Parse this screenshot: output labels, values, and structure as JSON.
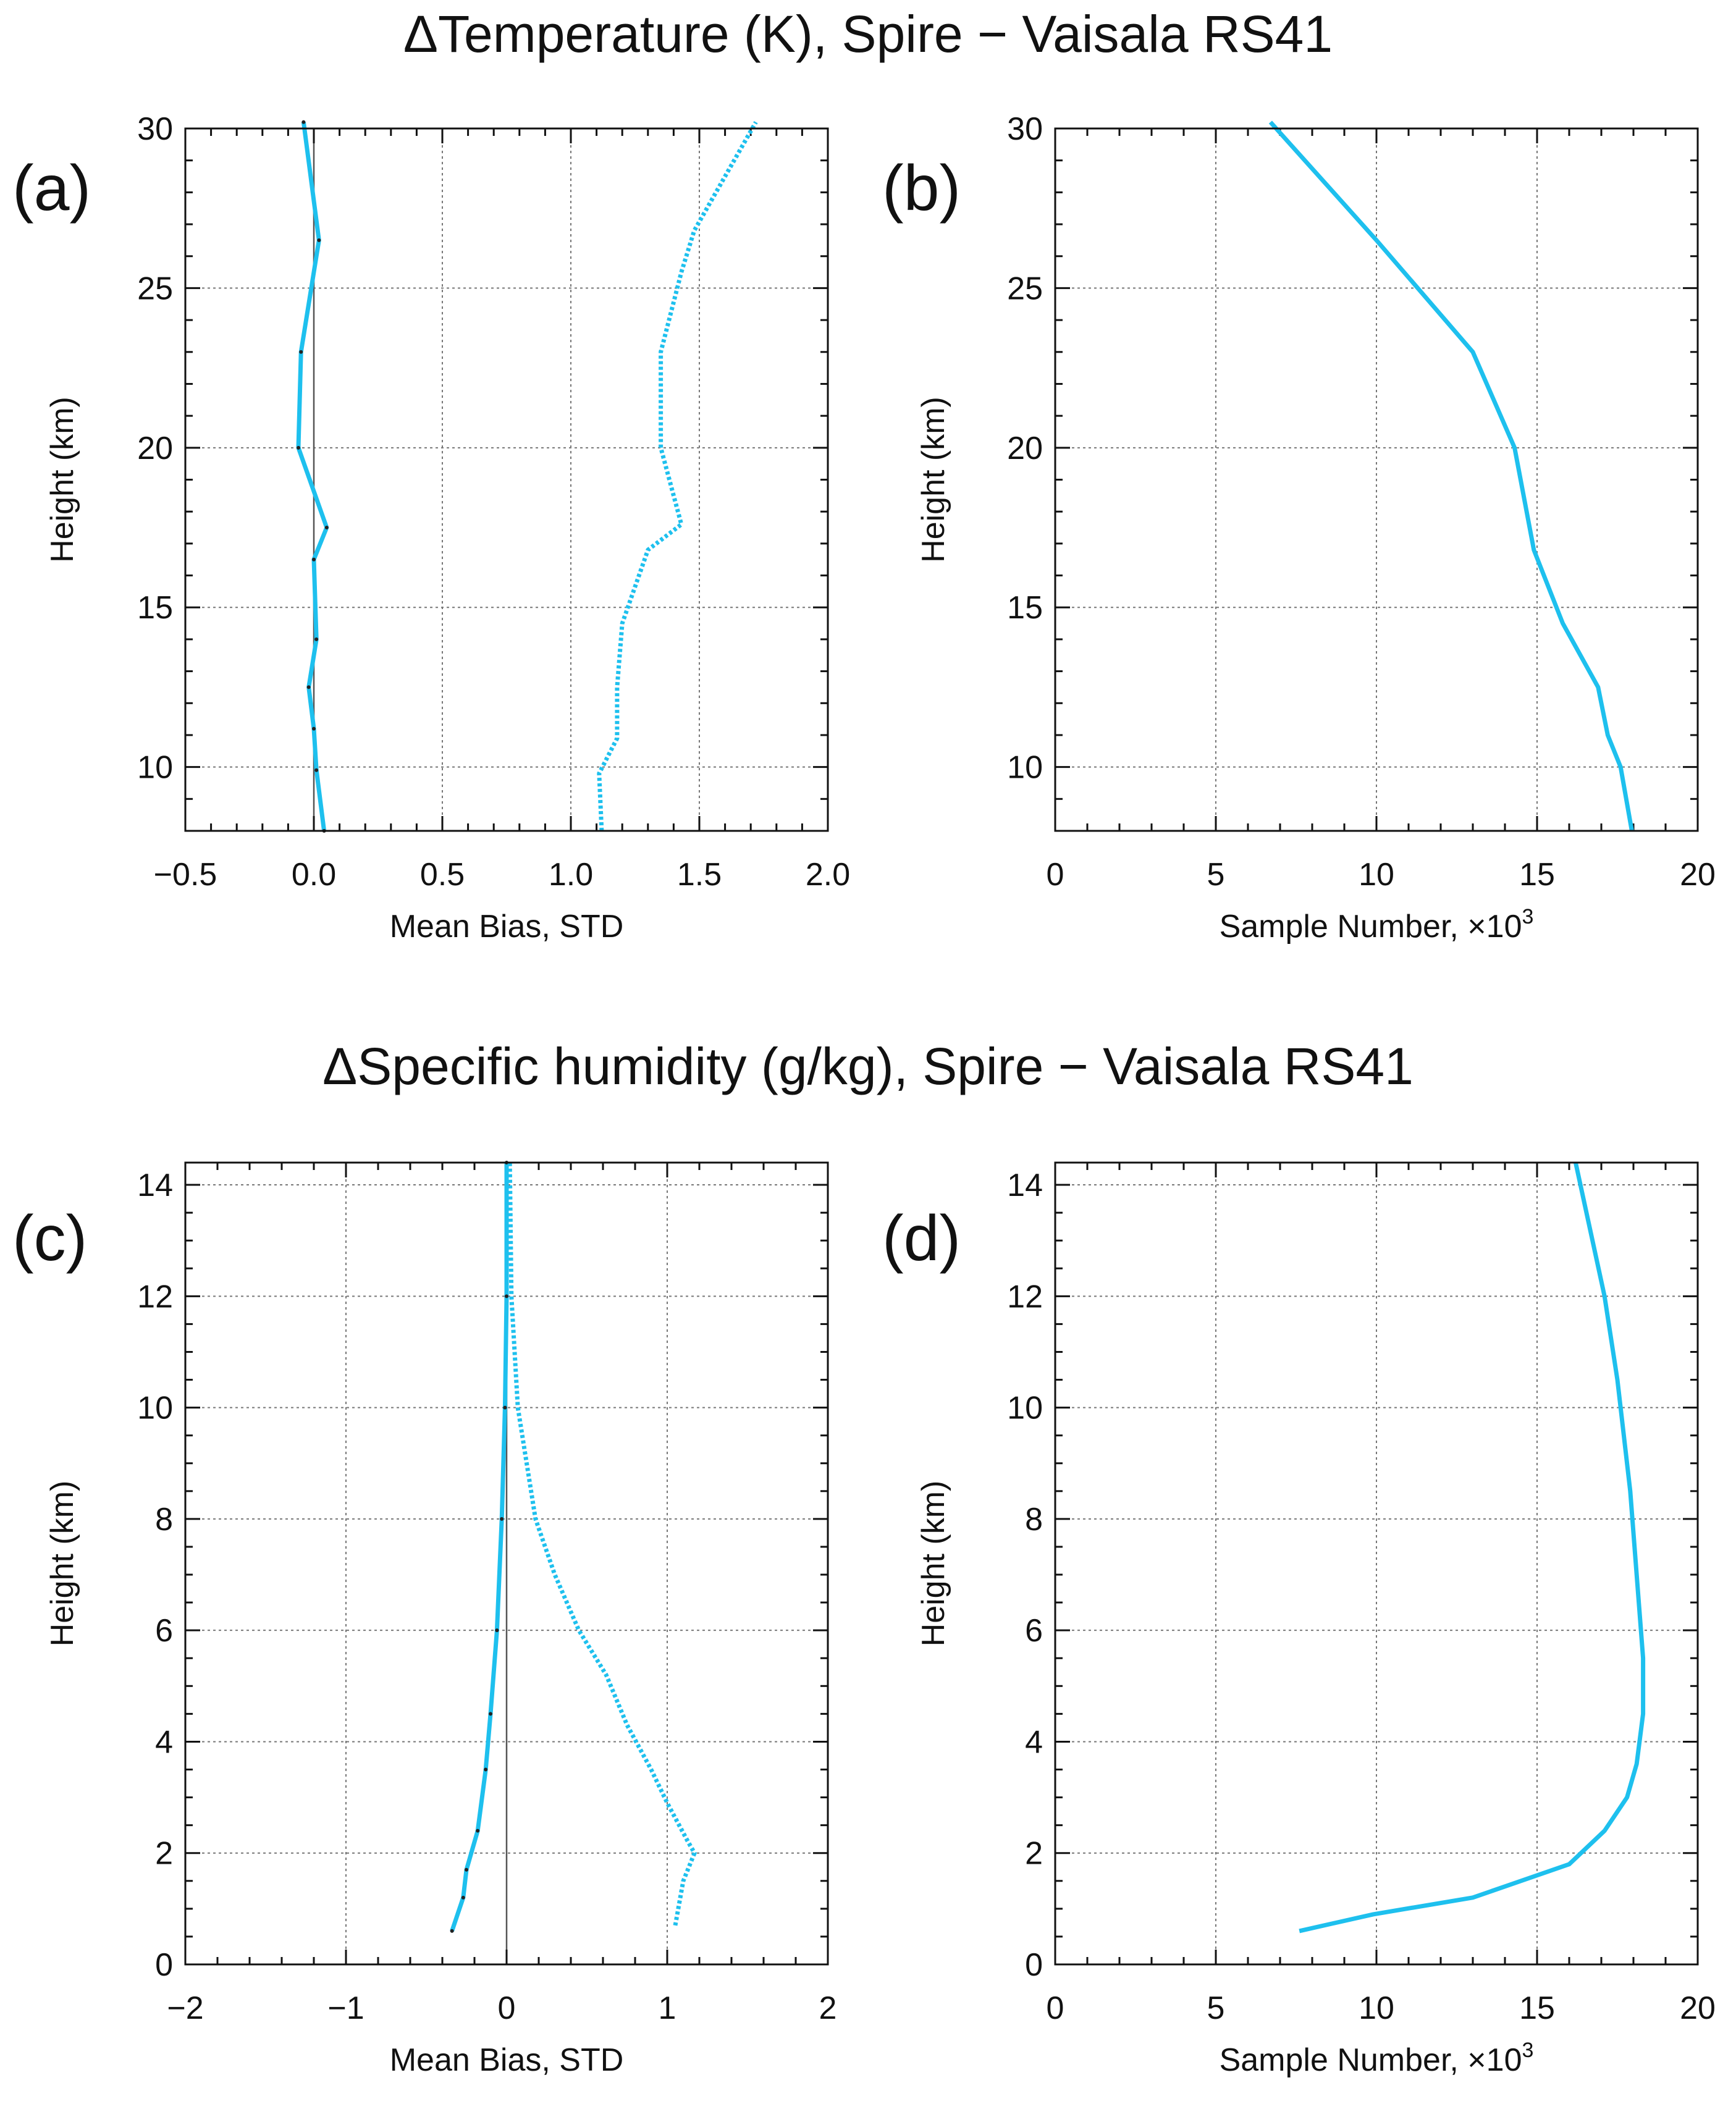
{
  "titles": {
    "top": "ΔTemperature (K), Spire − Vaisala RS41",
    "bottom": "ΔSpecific humidity (g/kg), Spire − Vaisala RS41"
  },
  "colors": {
    "series": "#1ec0ee",
    "zero_line": "#555555",
    "grid": "#777777"
  },
  "chart_data": [
    {
      "id": "a",
      "panel_label": "(a)",
      "type": "line",
      "xlabel": "Mean Bias, STD",
      "ylabel": "Height (km)",
      "xlim": [
        -0.5,
        2.0
      ],
      "ylim": [
        8,
        30
      ],
      "xticks": [
        -0.5,
        0.0,
        0.5,
        1.0,
        1.5,
        2.0
      ],
      "xtick_labels": [
        "−0.5",
        "0.0",
        "0.5",
        "1.0",
        "1.5",
        "2.0"
      ],
      "yticks": [
        10,
        15,
        20,
        25,
        30
      ],
      "ytick_labels": [
        "10",
        "15",
        "20",
        "25",
        "30"
      ],
      "x_minor_step": 0.1,
      "y_minor_step": 1,
      "zero_line": 0,
      "series": [
        {
          "name": "Mean Bias",
          "style": "solid",
          "points": [
            [
              0.04,
              8.0
            ],
            [
              0.01,
              9.9
            ],
            [
              0.0,
              11.2
            ],
            [
              -0.02,
              12.5
            ],
            [
              0.01,
              14.0
            ],
            [
              0.0,
              16.5
            ],
            [
              0.05,
              17.5
            ],
            [
              -0.06,
              20.0
            ],
            [
              -0.05,
              23.0
            ],
            [
              0.02,
              26.5
            ],
            [
              -0.04,
              30.2
            ]
          ]
        },
        {
          "name": "STD",
          "style": "dotted",
          "points": [
            [
              1.12,
              8.0
            ],
            [
              1.11,
              9.8
            ],
            [
              1.18,
              10.9
            ],
            [
              1.18,
              12.5
            ],
            [
              1.2,
              14.5
            ],
            [
              1.3,
              16.8
            ],
            [
              1.43,
              17.6
            ],
            [
              1.35,
              20.0
            ],
            [
              1.35,
              23.0
            ],
            [
              1.43,
              25.5
            ],
            [
              1.48,
              26.8
            ],
            [
              1.72,
              30.2
            ]
          ]
        }
      ]
    },
    {
      "id": "b",
      "panel_label": "(b)",
      "type": "line",
      "xlabel": "Sample Number, ×10",
      "xlabel_sup": "3",
      "ylabel": "Height (km)",
      "xlim": [
        0,
        20
      ],
      "ylim": [
        8,
        30
      ],
      "xticks": [
        0,
        5,
        10,
        15,
        20
      ],
      "xtick_labels": [
        "0",
        "5",
        "10",
        "15",
        "20"
      ],
      "yticks": [
        10,
        15,
        20,
        25,
        30
      ],
      "ytick_labels": [
        "10",
        "15",
        "20",
        "25",
        "30"
      ],
      "x_minor_step": 1,
      "y_minor_step": 1,
      "series": [
        {
          "name": "Sample Number",
          "style": "solid",
          "points": [
            [
              17.95,
              8.0
            ],
            [
              17.6,
              10.0
            ],
            [
              17.2,
              11.0
            ],
            [
              16.9,
              12.5
            ],
            [
              15.8,
              14.5
            ],
            [
              14.9,
              16.8
            ],
            [
              14.3,
              20.0
            ],
            [
              13.0,
              23.0
            ],
            [
              10.0,
              26.5
            ],
            [
              6.7,
              30.2
            ]
          ]
        }
      ]
    },
    {
      "id": "c",
      "panel_label": "(c)",
      "type": "line",
      "xlabel": "Mean Bias, STD",
      "ylabel": "Height (km)",
      "xlim": [
        -2,
        2
      ],
      "ylim": [
        0,
        14.4
      ],
      "xticks": [
        -2,
        -1,
        0,
        1,
        2
      ],
      "xtick_labels": [
        "−2",
        "−1",
        "0",
        "1",
        "2"
      ],
      "yticks": [
        0,
        2,
        4,
        6,
        8,
        10,
        12,
        14
      ],
      "ytick_labels": [
        "0",
        "2",
        "4",
        "6",
        "8",
        "10",
        "12",
        "14"
      ],
      "x_minor_step": 0.2,
      "y_minor_step": 0.5,
      "zero_line": 0,
      "series": [
        {
          "name": "Mean Bias",
          "style": "solid",
          "points": [
            [
              -0.34,
              0.6
            ],
            [
              -0.27,
              1.2
            ],
            [
              -0.25,
              1.7
            ],
            [
              -0.18,
              2.4
            ],
            [
              -0.13,
              3.5
            ],
            [
              -0.1,
              4.5
            ],
            [
              -0.06,
              6.0
            ],
            [
              -0.03,
              8.0
            ],
            [
              -0.01,
              10.0
            ],
            [
              0.0,
              12.0
            ],
            [
              0.0,
              14.4
            ]
          ]
        },
        {
          "name": "STD",
          "style": "dotted",
          "points": [
            [
              1.05,
              0.7
            ],
            [
              1.1,
              1.5
            ],
            [
              1.17,
              2.0
            ],
            [
              1.13,
              2.2
            ],
            [
              1.0,
              2.9
            ],
            [
              0.9,
              3.5
            ],
            [
              0.75,
              4.3
            ],
            [
              0.62,
              5.2
            ],
            [
              0.45,
              6.0
            ],
            [
              0.3,
              7.0
            ],
            [
              0.18,
              8.0
            ],
            [
              0.07,
              10.0
            ],
            [
              0.03,
              12.0
            ],
            [
              0.02,
              14.4
            ]
          ]
        }
      ]
    },
    {
      "id": "d",
      "panel_label": "(d)",
      "type": "line",
      "xlabel": "Sample Number, ×10",
      "xlabel_sup": "3",
      "ylabel": "Height (km)",
      "xlim": [
        0,
        20
      ],
      "ylim": [
        0,
        14.4
      ],
      "xticks": [
        0,
        5,
        10,
        15,
        20
      ],
      "xtick_labels": [
        "0",
        "5",
        "10",
        "15",
        "20"
      ],
      "yticks": [
        0,
        2,
        4,
        6,
        8,
        10,
        12,
        14
      ],
      "ytick_labels": [
        "0",
        "2",
        "4",
        "6",
        "8",
        "10",
        "12",
        "14"
      ],
      "x_minor_step": 1,
      "y_minor_step": 0.5,
      "series": [
        {
          "name": "Sample Number",
          "style": "solid",
          "points": [
            [
              7.6,
              0.6
            ],
            [
              9.9,
              0.9
            ],
            [
              13.0,
              1.2
            ],
            [
              16.0,
              1.8
            ],
            [
              17.1,
              2.4
            ],
            [
              17.8,
              3.0
            ],
            [
              18.1,
              3.6
            ],
            [
              18.3,
              4.5
            ],
            [
              18.3,
              5.5
            ],
            [
              18.1,
              7.0
            ],
            [
              17.9,
              8.5
            ],
            [
              17.5,
              10.5
            ],
            [
              17.1,
              12.0
            ],
            [
              16.2,
              14.4
            ]
          ]
        }
      ]
    }
  ]
}
